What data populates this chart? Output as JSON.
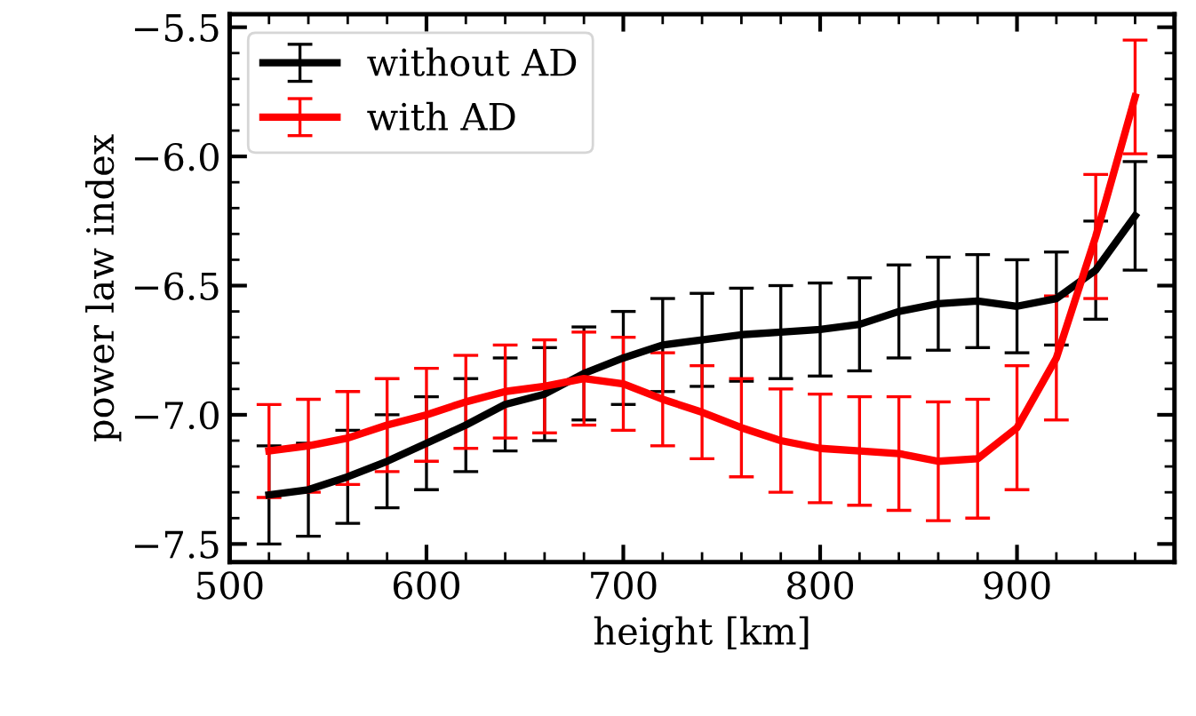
{
  "chart_data": {
    "type": "line",
    "xlabel": "height [km]",
    "ylabel": "power law index",
    "x": [
      520,
      540,
      560,
      580,
      600,
      620,
      640,
      660,
      680,
      700,
      720,
      740,
      760,
      780,
      800,
      820,
      840,
      860,
      880,
      900,
      920,
      940,
      960
    ],
    "series": [
      {
        "name": "without AD",
        "color": "#000000",
        "values": [
          -7.31,
          -7.29,
          -7.24,
          -7.18,
          -7.11,
          -7.04,
          -6.96,
          -6.92,
          -6.84,
          -6.78,
          -6.73,
          -6.71,
          -6.69,
          -6.68,
          -6.67,
          -6.65,
          -6.6,
          -6.57,
          -6.56,
          -6.58,
          -6.55,
          -6.44,
          -6.23
        ],
        "errors": [
          0.19,
          0.18,
          0.18,
          0.18,
          0.18,
          0.18,
          0.18,
          0.18,
          0.18,
          0.18,
          0.18,
          0.18,
          0.18,
          0.18,
          0.18,
          0.18,
          0.18,
          0.18,
          0.18,
          0.18,
          0.18,
          0.19,
          0.21
        ]
      },
      {
        "name": "with AD",
        "color": "#ff0000",
        "values": [
          -7.14,
          -7.12,
          -7.09,
          -7.04,
          -7.0,
          -6.95,
          -6.91,
          -6.89,
          -6.86,
          -6.88,
          -6.94,
          -6.99,
          -7.05,
          -7.1,
          -7.13,
          -7.14,
          -7.15,
          -7.18,
          -7.17,
          -7.05,
          -6.78,
          -6.31,
          -5.77
        ],
        "errors": [
          0.18,
          0.18,
          0.18,
          0.18,
          0.18,
          0.18,
          0.18,
          0.18,
          0.18,
          0.18,
          0.18,
          0.18,
          0.19,
          0.2,
          0.21,
          0.21,
          0.22,
          0.23,
          0.23,
          0.24,
          0.24,
          0.24,
          0.22
        ]
      }
    ],
    "xlim": [
      500,
      980
    ],
    "xticks": [
      500,
      600,
      700,
      800,
      900
    ],
    "ylim": [
      -7.57,
      -5.45
    ],
    "yticks": [
      {
        "value": -7.5,
        "label": "−7.5"
      },
      {
        "value": -7.0,
        "label": "−7.0"
      },
      {
        "value": -6.5,
        "label": "−6.5"
      },
      {
        "value": -6.0,
        "label": "−6.0"
      },
      {
        "value": -5.5,
        "label": "−5.5"
      }
    ],
    "legend": "top left",
    "grid": false,
    "line_style": "solid",
    "marker": "none"
  }
}
